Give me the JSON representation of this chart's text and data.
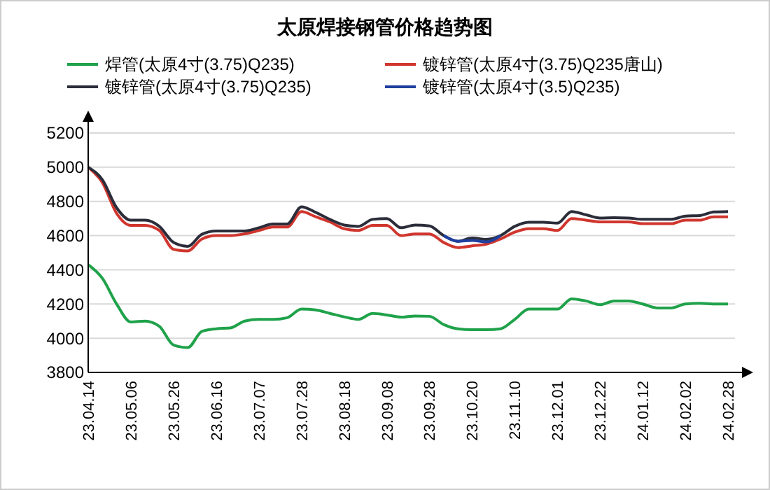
{
  "chart_data": {
    "type": "line",
    "title": "太原焊接钢管价格趋势图",
    "categories": [
      "23.04.14",
      null,
      null,
      "23.05.06",
      null,
      null,
      "23.05.26",
      null,
      null,
      "23.06.16",
      null,
      null,
      "23.07.07",
      null,
      null,
      "23.07.28",
      null,
      null,
      "23.08.18",
      null,
      null,
      "23.09.08",
      null,
      null,
      "23.09.28",
      null,
      null,
      "23.10.20",
      null,
      null,
      "23.11.10",
      null,
      null,
      "23.12.01",
      null,
      null,
      "23.12.22",
      null,
      null,
      "24.01.12",
      null,
      null,
      "24.02.02",
      null,
      null,
      "24.02.28"
    ],
    "series": [
      {
        "name": "焊管(太原4寸(3.75)Q235)",
        "color": "#1fa24a",
        "values": [
          4430,
          4350,
          4200,
          4095,
          4100,
          4070,
          3960,
          3945,
          4040,
          4055,
          4060,
          4100,
          4110,
          4110,
          4120,
          4170,
          4165,
          4145,
          4125,
          4110,
          4145,
          4136,
          4123,
          4130,
          4128,
          4080,
          4055,
          4050,
          4050,
          4055,
          4110,
          4170,
          4170,
          4170,
          4230,
          4218,
          4196,
          4218,
          4218,
          4200,
          4177,
          4177,
          4200,
          4204,
          4200,
          4200
        ]
      },
      {
        "name": "镀锌管(太原4寸(3.75)Q235唐山)",
        "color": "#d0362e",
        "values": [
          5000,
          4910,
          4730,
          4660,
          4660,
          4630,
          4520,
          4510,
          4580,
          4600,
          4600,
          4610,
          4630,
          4650,
          4650,
          4740,
          4710,
          4680,
          4640,
          4630,
          4660,
          4660,
          4600,
          4610,
          4610,
          4560,
          4530,
          4540,
          4550,
          4580,
          4620,
          4640,
          4640,
          4630,
          4700,
          4690,
          4680,
          4680,
          4680,
          4670,
          4670,
          4670,
          4690,
          4690,
          4710,
          4710
        ]
      },
      {
        "name": "镀锌管(太原4寸(3.75)Q235)",
        "color": "#2b2d3a",
        "values": [
          5000,
          4926,
          4763,
          4690,
          4690,
          4654,
          4560,
          4537,
          4608,
          4627,
          4627,
          4627,
          4646,
          4668,
          4668,
          4768,
          4736,
          4695,
          4662,
          4654,
          4695,
          4700,
          4646,
          4662,
          4657,
          4600,
          4567,
          4586,
          4578,
          4600,
          4654,
          4678,
          4678,
          4673,
          4741,
          4722,
          4703,
          4705,
          4703,
          4695,
          4695,
          4695,
          4714,
          4717,
          4738,
          4741
        ]
      },
      {
        "name": "镀锌管(太原4寸(3.5)Q235)",
        "color": "#1f3f9f",
        "values": [
          null,
          null,
          null,
          null,
          null,
          null,
          null,
          null,
          null,
          null,
          null,
          null,
          null,
          null,
          null,
          null,
          null,
          null,
          null,
          null,
          null,
          null,
          null,
          null,
          null,
          4600,
          4567,
          4572,
          4563,
          4600,
          null,
          null,
          null,
          null,
          null,
          null,
          null,
          null,
          null,
          null,
          null,
          null,
          null,
          null,
          null,
          null
        ]
      }
    ],
    "ylim": [
      3800,
      5200
    ],
    "yticks": [
      3800,
      4000,
      4200,
      4400,
      4600,
      4800,
      5000,
      5200
    ],
    "grid": "y",
    "legend": "top",
    "marker": "none",
    "line_style": "solid"
  }
}
